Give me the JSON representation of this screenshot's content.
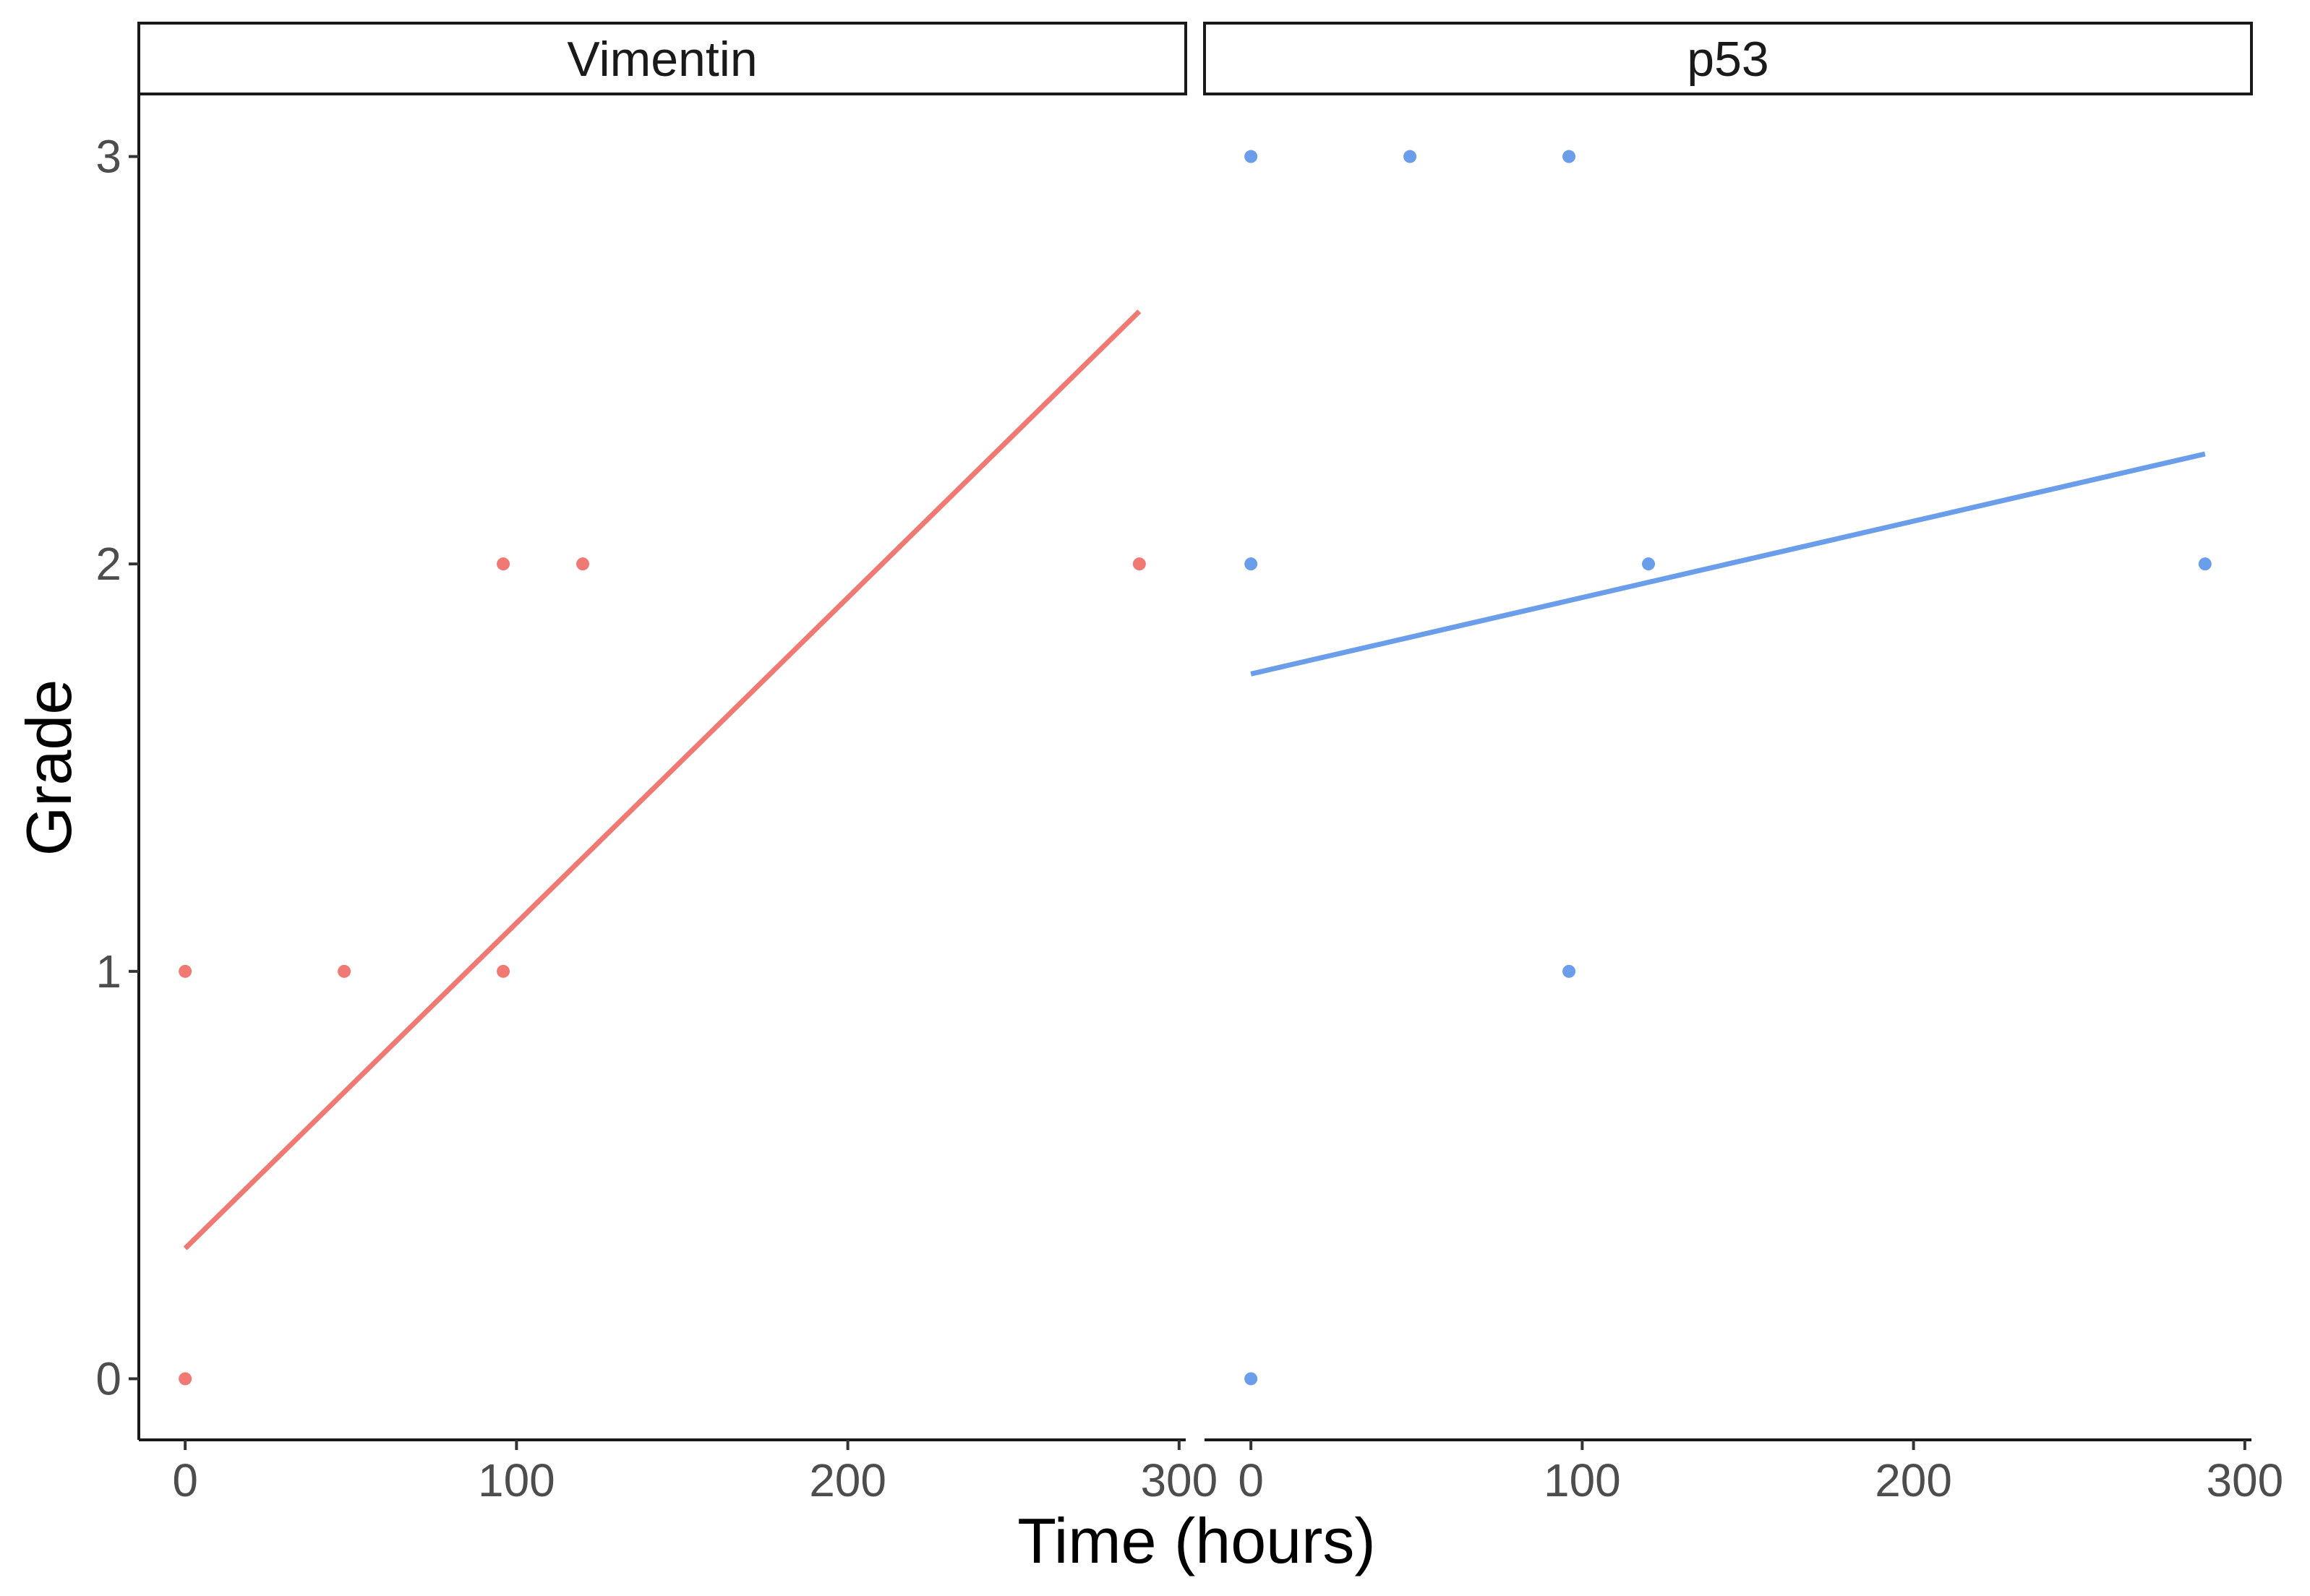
{
  "chart_data": {
    "type": "scatter",
    "xlabel": "Time (hours)",
    "ylabel": "Grade",
    "xlim": [
      -14,
      302
    ],
    "ylim": [
      -0.15,
      3.15
    ],
    "x_ticks": [
      0,
      100,
      200,
      300
    ],
    "y_ticks": [
      0,
      1,
      2,
      3
    ],
    "grid": false,
    "legend": "none",
    "panels": [
      {
        "name": "Vimentin",
        "color": "#F07A73",
        "points": [
          {
            "x": 0,
            "y": 0
          },
          {
            "x": 0,
            "y": 1
          },
          {
            "x": 48,
            "y": 1
          },
          {
            "x": 96,
            "y": 1
          },
          {
            "x": 96,
            "y": 2
          },
          {
            "x": 120,
            "y": 2
          },
          {
            "x": 288,
            "y": 2
          }
        ],
        "fit_line": [
          {
            "x": 0,
            "y": 0.32
          },
          {
            "x": 288,
            "y": 2.62
          }
        ]
      },
      {
        "name": "p53",
        "color": "#6A9DEA",
        "points": [
          {
            "x": 0,
            "y": 0
          },
          {
            "x": 0,
            "y": 2
          },
          {
            "x": 0,
            "y": 3
          },
          {
            "x": 48,
            "y": 3
          },
          {
            "x": 96,
            "y": 3
          },
          {
            "x": 96,
            "y": 1
          },
          {
            "x": 120,
            "y": 2
          },
          {
            "x": 288,
            "y": 2
          }
        ],
        "fit_line": [
          {
            "x": 0,
            "y": 1.73
          },
          {
            "x": 288,
            "y": 2.27
          }
        ]
      }
    ]
  }
}
